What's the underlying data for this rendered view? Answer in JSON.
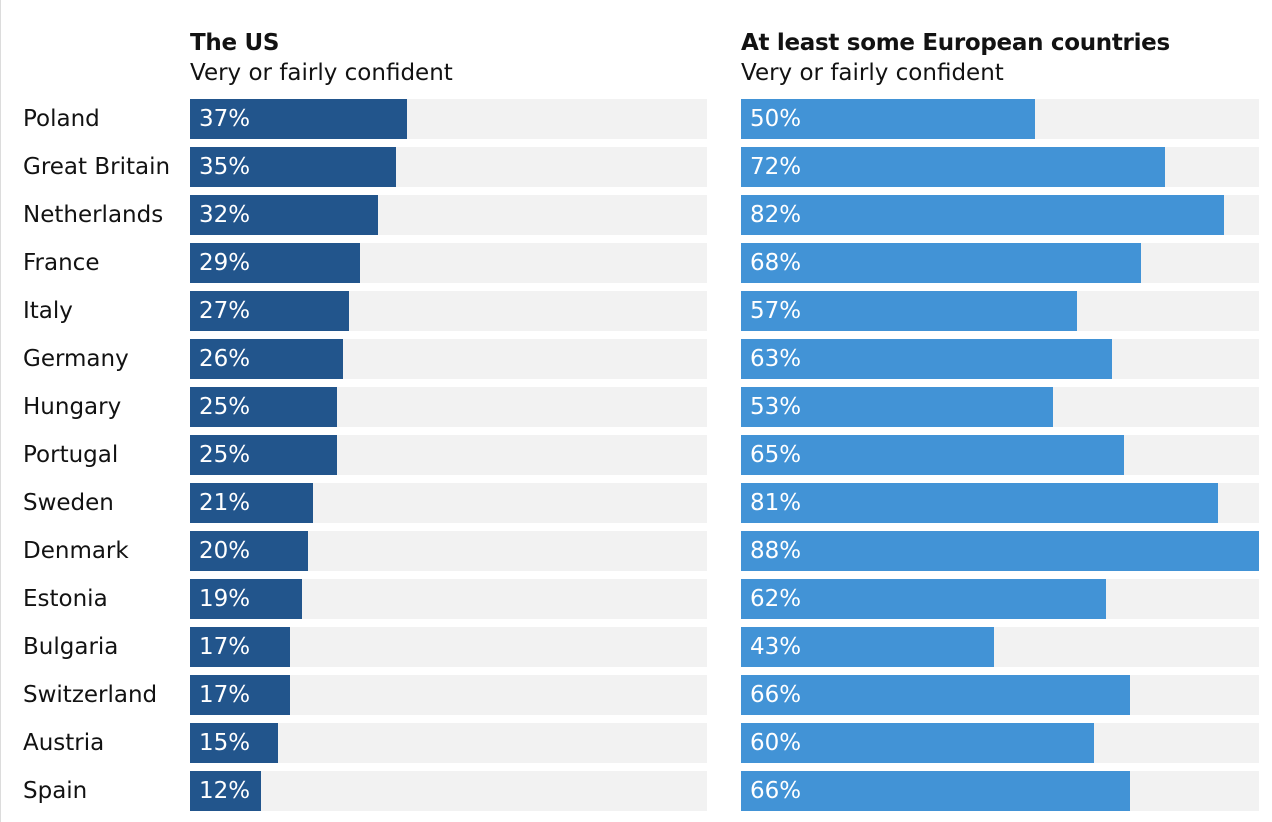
{
  "panels": [
    {
      "title": "The US",
      "subtitle": "Very or fairly confident",
      "color": "#22558c"
    },
    {
      "title": "At least some European countries",
      "subtitle": "Very or fairly confident",
      "color": "#4293d6"
    }
  ],
  "chart_data": {
    "type": "bar",
    "orientation": "horizontal",
    "categories": [
      "Poland",
      "Great Britain",
      "Netherlands",
      "France",
      "Italy",
      "Germany",
      "Hungary",
      "Portugal",
      "Sweden",
      "Denmark",
      "Estonia",
      "Bulgaria",
      "Switzerland",
      "Austria",
      "Spain"
    ],
    "series": [
      {
        "name": "The US",
        "values": [
          37,
          35,
          32,
          29,
          27,
          26,
          25,
          25,
          21,
          20,
          19,
          17,
          17,
          15,
          12
        ],
        "labels": [
          "37%",
          "35%",
          "32%",
          "29%",
          "27%",
          "26%",
          "25%",
          "25%",
          "21%",
          "20%",
          "19%",
          "17%",
          "17%",
          "15%",
          "12%"
        ]
      },
      {
        "name": "At least some European countries",
        "values": [
          50,
          72,
          82,
          68,
          57,
          63,
          53,
          65,
          81,
          88,
          62,
          43,
          66,
          60,
          66
        ],
        "labels": [
          "50%",
          "72%",
          "82%",
          "68%",
          "57%",
          "63%",
          "53%",
          "65%",
          "81%",
          "88%",
          "62%",
          "43%",
          "66%",
          "60%",
          "66%"
        ]
      }
    ],
    "xlim": [
      0,
      88
    ],
    "grid": false,
    "legend": "none"
  }
}
